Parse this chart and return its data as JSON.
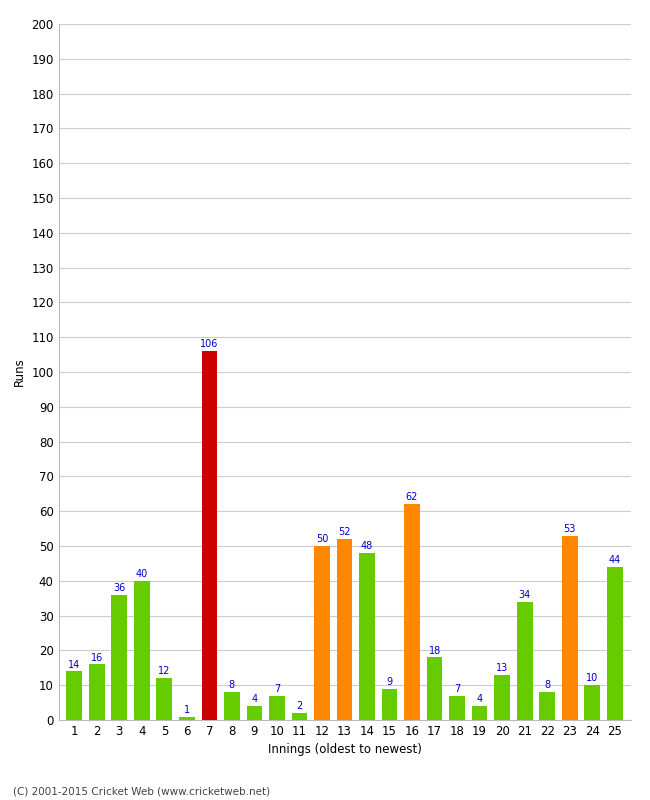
{
  "xlabel": "Innings (oldest to newest)",
  "ylabel": "Runs",
  "innings": [
    1,
    2,
    3,
    4,
    5,
    6,
    7,
    8,
    9,
    10,
    11,
    12,
    13,
    14,
    15,
    16,
    17,
    18,
    19,
    20,
    21,
    22,
    23,
    24,
    25
  ],
  "values": [
    14,
    16,
    36,
    40,
    12,
    1,
    106,
    8,
    4,
    7,
    2,
    50,
    52,
    48,
    9,
    62,
    18,
    7,
    4,
    13,
    34,
    8,
    53,
    10,
    44
  ],
  "colors": [
    "#66cc00",
    "#66cc00",
    "#66cc00",
    "#66cc00",
    "#66cc00",
    "#66cc00",
    "#cc0000",
    "#66cc00",
    "#66cc00",
    "#66cc00",
    "#66cc00",
    "#ff8800",
    "#ff8800",
    "#66cc00",
    "#66cc00",
    "#ff8800",
    "#66cc00",
    "#66cc00",
    "#66cc00",
    "#66cc00",
    "#66cc00",
    "#66cc00",
    "#ff8800",
    "#66cc00",
    "#66cc00"
  ],
  "ylim": [
    0,
    200
  ],
  "yticks": [
    0,
    10,
    20,
    30,
    40,
    50,
    60,
    70,
    80,
    90,
    100,
    110,
    120,
    130,
    140,
    150,
    160,
    170,
    180,
    190,
    200
  ],
  "label_color": "#0000cc",
  "label_fontsize": 7,
  "axis_tick_fontsize": 8.5,
  "background_color": "#ffffff",
  "grid_color": "#cccccc",
  "copyright": "(C) 2001-2015 Cricket Web (www.cricketweb.net)"
}
